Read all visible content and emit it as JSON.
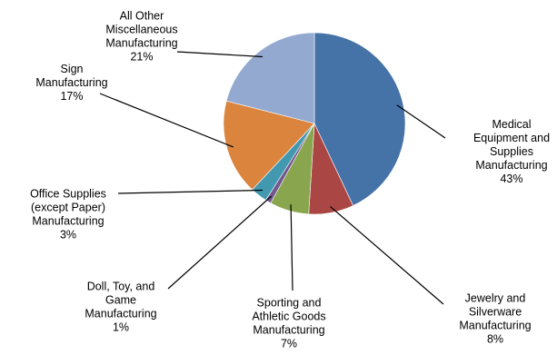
{
  "chart_data": {
    "type": "pie",
    "title": "",
    "slices": [
      {
        "label": "Medical Equipment and Supplies Manufacturing",
        "label_lines": [
          "Medical",
          "Equipment and",
          "Supplies",
          "Manufacturing"
        ],
        "value": 43,
        "value_label": "43%",
        "color": "#4572A7"
      },
      {
        "label": "Jewelry and Silverware Manufacturing",
        "label_lines": [
          "Jewelry and",
          "Silverware",
          "Manufacturing"
        ],
        "value": 8,
        "value_label": "8%",
        "color": "#AA4643"
      },
      {
        "label": "Sporting and Athletic Goods Manufacturing",
        "label_lines": [
          "Sporting and",
          "Athletic Goods",
          "Manufacturing"
        ],
        "value": 7,
        "value_label": "7%",
        "color": "#89A54E"
      },
      {
        "label": "Doll, Toy, and Game Manufacturing",
        "label_lines": [
          "Doll, Toy, and",
          "Game",
          "Manufacturing"
        ],
        "value": 1,
        "value_label": "1%",
        "color": "#71588F"
      },
      {
        "label": "Office Supplies (except Paper) Manufacturing",
        "label_lines": [
          "Office Supplies",
          "(except Paper)",
          "Manufacturing"
        ],
        "value": 3,
        "value_label": "3%",
        "color": "#4198AF"
      },
      {
        "label": "Sign Manufacturing",
        "label_lines": [
          "Sign",
          "Manufacturing"
        ],
        "value": 17,
        "value_label": "17%",
        "color": "#DB843D"
      },
      {
        "label": "All Other Miscellaneous Manufacturing",
        "label_lines": [
          "All Other",
          "Miscellaneous",
          "Manufacturing"
        ],
        "value": 21,
        "value_label": "21%",
        "color": "#93A9CF"
      }
    ],
    "start_angle_deg": 0,
    "direction": "clockwise",
    "legend": "none",
    "label_style": "outside with leader lines"
  }
}
